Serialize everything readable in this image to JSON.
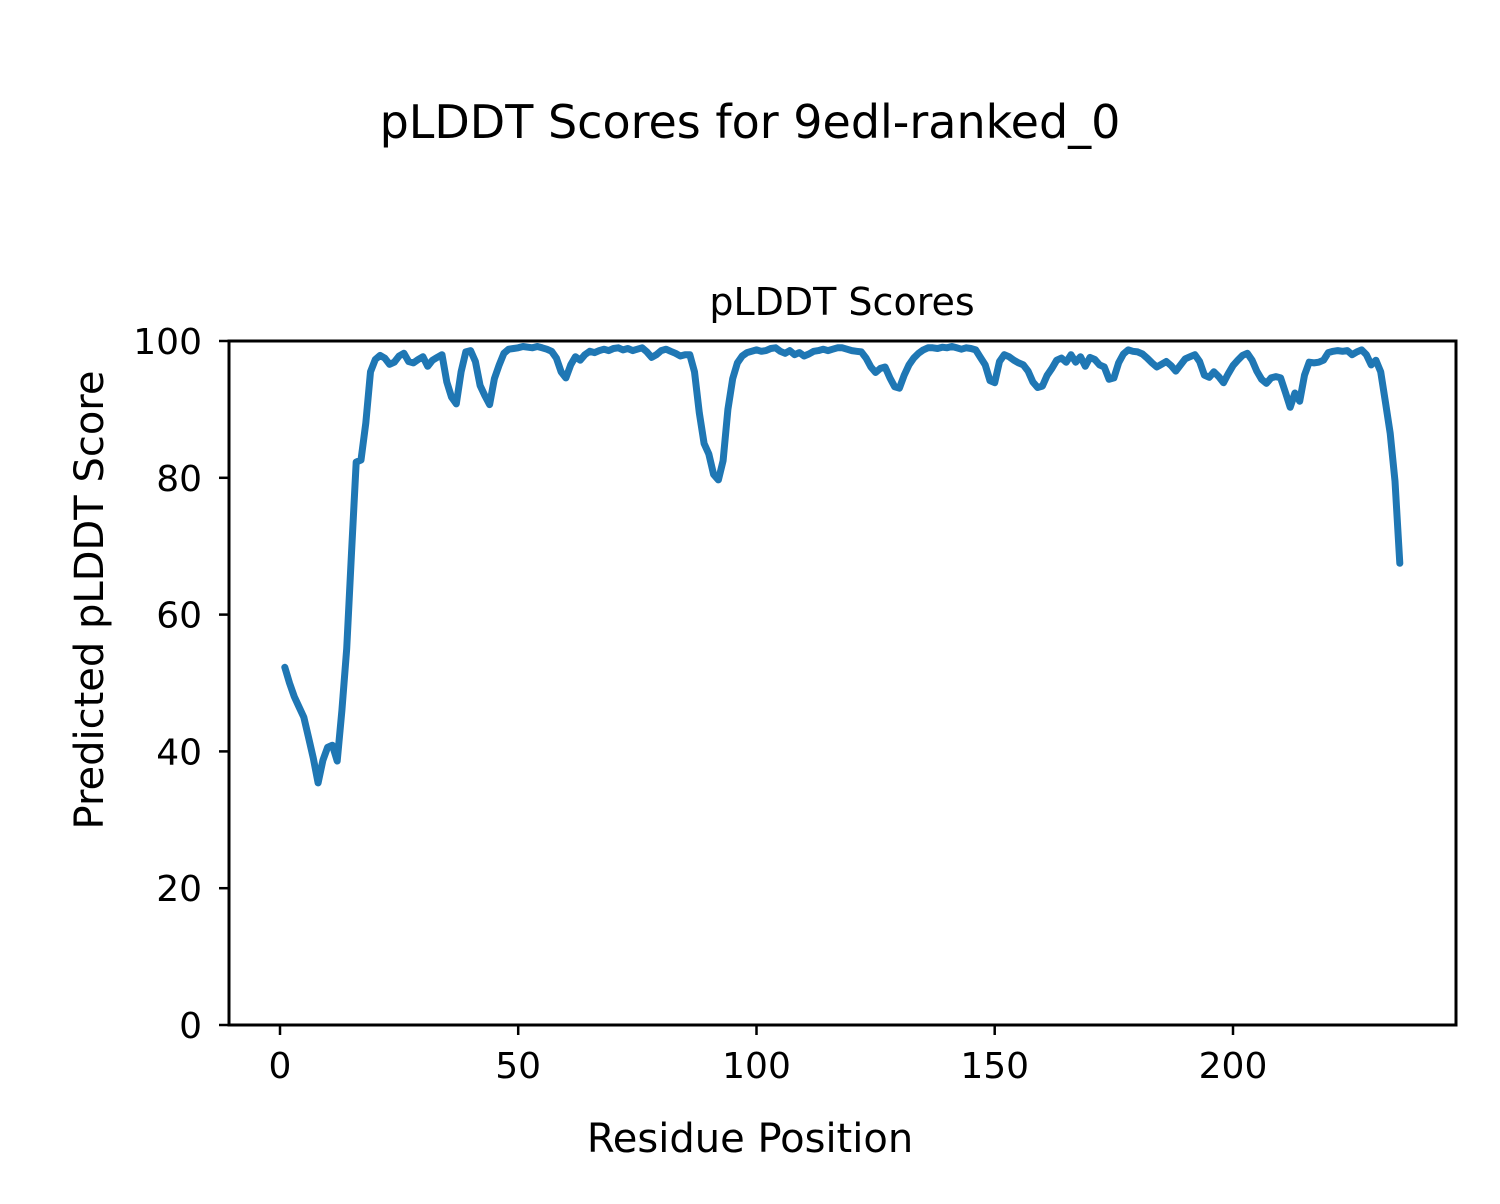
{
  "figure": {
    "suptitle": "pLDDT Scores for 9edl-ranked_0"
  },
  "chart_data": {
    "type": "line",
    "title": "pLDDT Scores",
    "xlabel": "Residue Position",
    "ylabel": "Predicted pLDDT Score",
    "xlim": [
      -10.7,
      246.8
    ],
    "ylim": [
      0,
      100
    ],
    "xticks": [
      0,
      50,
      100,
      150,
      200
    ],
    "yticks": [
      0,
      20,
      40,
      60,
      80,
      100
    ],
    "grid": false,
    "legend": "none",
    "line_color": "#1f77b4",
    "series": [
      {
        "name": "pLDDT",
        "x_start": 1,
        "x_step": 1,
        "y": [
          52.3,
          50.0,
          48.0,
          46.5,
          45.0,
          42.0,
          39.0,
          35.4,
          38.7,
          40.6,
          40.9,
          38.6,
          46.0,
          55.0,
          69.0,
          82.3,
          82.6,
          88.0,
          95.5,
          97.3,
          97.9,
          97.5,
          96.6,
          96.9,
          97.8,
          98.2,
          97.0,
          96.8,
          97.3,
          97.7,
          96.3,
          97.2,
          97.6,
          98.0,
          94.0,
          91.8,
          90.8,
          95.5,
          98.4,
          98.6,
          97.0,
          93.5,
          92.0,
          90.7,
          94.5,
          96.5,
          98.2,
          98.8,
          98.9,
          99.0,
          99.2,
          99.1,
          99.0,
          99.2,
          99.0,
          98.8,
          98.5,
          97.5,
          95.5,
          94.6,
          96.5,
          97.7,
          97.2,
          98.0,
          98.5,
          98.3,
          98.6,
          98.8,
          98.6,
          98.9,
          99.0,
          98.7,
          98.9,
          98.6,
          98.8,
          99.0,
          98.4,
          97.6,
          98.0,
          98.6,
          98.8,
          98.5,
          98.2,
          97.8,
          98.0,
          98.0,
          95.5,
          89.5,
          85.0,
          83.5,
          80.5,
          79.7,
          82.5,
          90.0,
          94.5,
          96.8,
          97.8,
          98.3,
          98.5,
          98.7,
          98.5,
          98.6,
          98.9,
          99.0,
          98.5,
          98.2,
          98.6,
          98.0,
          98.3,
          97.8,
          98.1,
          98.5,
          98.6,
          98.8,
          98.6,
          98.8,
          99.0,
          99.0,
          98.8,
          98.6,
          98.5,
          98.4,
          97.5,
          96.2,
          95.4,
          96.0,
          96.2,
          94.6,
          93.3,
          93.1,
          95.0,
          96.5,
          97.5,
          98.2,
          98.7,
          99.0,
          99.0,
          98.9,
          99.1,
          99.0,
          99.2,
          99.0,
          98.8,
          99.0,
          98.9,
          98.7,
          97.6,
          96.5,
          94.2,
          93.9,
          97.0,
          98.0,
          97.7,
          97.2,
          96.8,
          96.5,
          95.6,
          94.0,
          93.2,
          93.4,
          95.0,
          96.0,
          97.2,
          97.5,
          96.9,
          98.0,
          96.9,
          97.7,
          96.3,
          97.6,
          97.3,
          96.5,
          96.2,
          94.4,
          94.6,
          96.8,
          98.1,
          98.7,
          98.5,
          98.4,
          98.1,
          97.5,
          96.8,
          96.2,
          96.6,
          97.0,
          96.4,
          95.6,
          96.5,
          97.4,
          97.7,
          98.0,
          97.0,
          95.0,
          94.7,
          95.5,
          94.8,
          93.9,
          95.2,
          96.4,
          97.2,
          97.9,
          98.2,
          97.2,
          95.6,
          94.4,
          93.8,
          94.6,
          94.8,
          94.6,
          92.5,
          90.3,
          92.4,
          91.2,
          95.0,
          96.9,
          96.8,
          96.9,
          97.2,
          98.3,
          98.5,
          98.6,
          98.5,
          98.6,
          98.0,
          98.4,
          98.7,
          98.0,
          96.5,
          97.2,
          95.5,
          91.0,
          86.5,
          79.5,
          67.5
        ]
      }
    ]
  }
}
